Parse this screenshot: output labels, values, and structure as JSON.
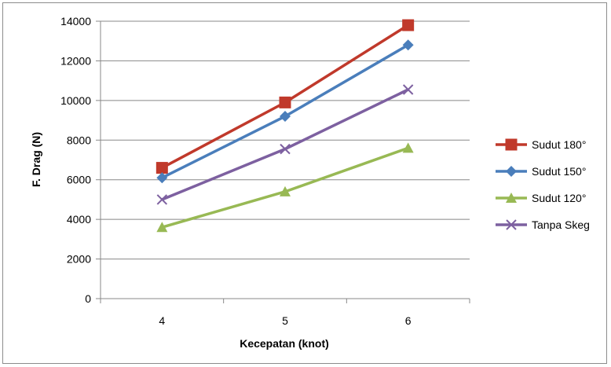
{
  "chart_data": {
    "type": "line",
    "title": "",
    "xlabel": "Kecepatan (knot)",
    "ylabel": "F. Drag (N)",
    "categories": [
      "4",
      "5",
      "6"
    ],
    "x": [
      4,
      5,
      6
    ],
    "ylim": [
      0,
      14000
    ],
    "yticks": [
      "0",
      "2000",
      "4000",
      "6000",
      "8000",
      "10000",
      "12000",
      "14000"
    ],
    "grid": "horizontal",
    "legend": "right",
    "series": [
      {
        "name": "Sudut 180°",
        "values": [
          6600,
          9900,
          13800
        ],
        "color": "#c0392b",
        "marker": "square"
      },
      {
        "name": "Sudut 150°",
        "values": [
          6100,
          9200,
          12800
        ],
        "color": "#4a7ebb",
        "marker": "diamond"
      },
      {
        "name": "Sudut 120°",
        "values": [
          3600,
          5400,
          7600
        ],
        "color": "#98b954",
        "marker": "triangle"
      },
      {
        "name": "Tanpa Skeg",
        "values": [
          5000,
          7550,
          10550
        ],
        "color": "#7d60a0",
        "marker": "x"
      }
    ]
  }
}
